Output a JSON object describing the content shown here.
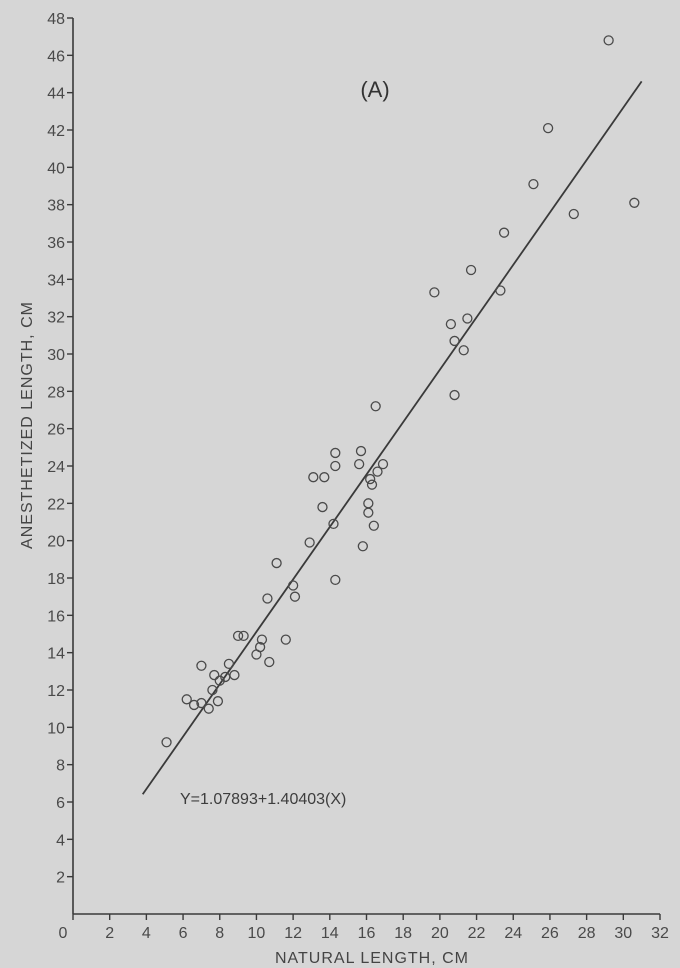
{
  "chart_data": {
    "type": "scatter",
    "panel_label": "(A)",
    "xlabel": "NATURAL LENGTH, CM",
    "ylabel": "ANESTHETIZED LENGTH, CM",
    "xlim": [
      0,
      32
    ],
    "ylim": [
      0,
      48
    ],
    "x_ticks": [
      0,
      2,
      4,
      6,
      8,
      10,
      12,
      14,
      16,
      18,
      20,
      22,
      24,
      26,
      28,
      30,
      32
    ],
    "y_ticks": [
      2,
      4,
      6,
      8,
      10,
      12,
      14,
      16,
      18,
      20,
      22,
      24,
      26,
      28,
      30,
      32,
      34,
      36,
      38,
      40,
      42,
      44,
      46,
      48
    ],
    "grid": false,
    "equation": "Y=1.07893+1.40403(X)",
    "fit_line": {
      "x": [
        3.8,
        31.0
      ]
    },
    "points": [
      [
        5.1,
        9.2
      ],
      [
        6.2,
        11.5
      ],
      [
        6.6,
        11.2
      ],
      [
        7.0,
        11.3
      ],
      [
        7.0,
        13.3
      ],
      [
        7.4,
        11.0
      ],
      [
        7.6,
        12.0
      ],
      [
        7.7,
        12.8
      ],
      [
        7.9,
        11.4
      ],
      [
        8.0,
        12.5
      ],
      [
        8.3,
        12.7
      ],
      [
        8.5,
        13.4
      ],
      [
        8.8,
        12.8
      ],
      [
        9.0,
        14.9
      ],
      [
        9.3,
        14.9
      ],
      [
        10.0,
        13.9
      ],
      [
        10.2,
        14.3
      ],
      [
        10.3,
        14.7
      ],
      [
        10.7,
        13.5
      ],
      [
        10.6,
        16.9
      ],
      [
        11.1,
        18.8
      ],
      [
        11.6,
        14.7
      ],
      [
        12.0,
        17.6
      ],
      [
        12.1,
        17.0
      ],
      [
        12.9,
        19.9
      ],
      [
        13.1,
        23.4
      ],
      [
        13.6,
        21.8
      ],
      [
        13.7,
        23.4
      ],
      [
        14.2,
        20.9
      ],
      [
        14.3,
        24.0
      ],
      [
        14.3,
        24.7
      ],
      [
        14.3,
        17.9
      ],
      [
        15.6,
        24.1
      ],
      [
        15.7,
        24.8
      ],
      [
        15.8,
        19.7
      ],
      [
        16.1,
        21.5
      ],
      [
        16.1,
        22.0
      ],
      [
        16.2,
        23.3
      ],
      [
        16.3,
        23.0
      ],
      [
        16.4,
        20.8
      ],
      [
        16.5,
        27.2
      ],
      [
        16.6,
        23.7
      ],
      [
        16.9,
        24.1
      ],
      [
        19.7,
        33.3
      ],
      [
        20.6,
        31.6
      ],
      [
        20.8,
        30.7
      ],
      [
        20.8,
        27.8
      ],
      [
        21.3,
        30.2
      ],
      [
        21.5,
        31.9
      ],
      [
        21.7,
        34.5
      ],
      [
        23.3,
        33.4
      ],
      [
        23.5,
        36.5
      ],
      [
        25.1,
        39.1
      ],
      [
        25.9,
        42.1
      ],
      [
        27.3,
        37.5
      ],
      [
        29.2,
        46.8
      ],
      [
        30.6,
        38.1
      ]
    ]
  }
}
